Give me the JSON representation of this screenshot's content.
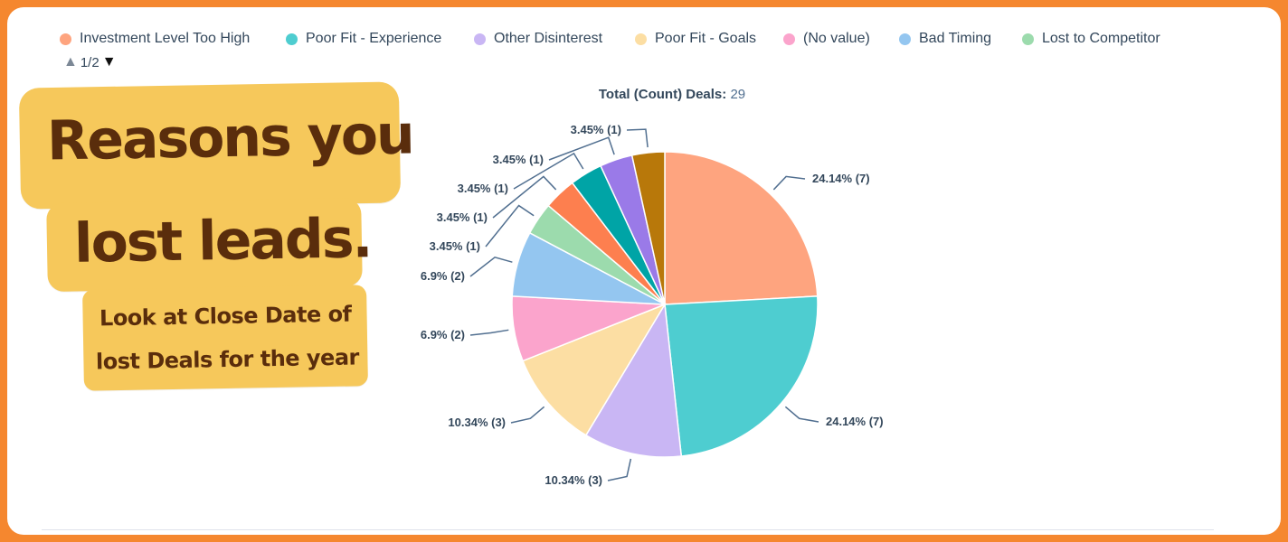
{
  "legend": {
    "items": [
      {
        "label": "Investment Level Too High",
        "color": "#fea47f"
      },
      {
        "label": "Poor Fit - Experience",
        "color": "#4ecdd0"
      },
      {
        "label": "Other Disinterest",
        "color": "#c9b6f4"
      },
      {
        "label": "Poor Fit - Goals",
        "color": "#fcdea3"
      },
      {
        "label": "(No value)",
        "color": "#fba4cc"
      },
      {
        "label": "Bad Timing",
        "color": "#94c6f0"
      },
      {
        "label": "Lost to Competitor",
        "color": "#9cdbad"
      }
    ],
    "pager": {
      "up_icon": "▲",
      "text": "1/2",
      "down_icon": "▼"
    }
  },
  "total": {
    "label": "Total (Count) Deals:",
    "value": "29"
  },
  "overlay": {
    "headline_line1": "Reasons you",
    "headline_line2": "lost leads.",
    "sub_line1": "Look at Close Date of",
    "sub_line2": "lost Deals for the year"
  },
  "chart_data": {
    "type": "pie",
    "title": "Total (Count) Deals: 29",
    "total": 29,
    "slices": [
      {
        "name": "Investment Level Too High",
        "value": 7,
        "percent": 24.14,
        "label": "24.14% (7)",
        "color": "#fea47f"
      },
      {
        "name": "Poor Fit - Experience",
        "value": 7,
        "percent": 24.14,
        "label": "24.14% (7)",
        "color": "#4ecdd0"
      },
      {
        "name": "Other Disinterest",
        "value": 3,
        "percent": 10.34,
        "label": "10.34% (3)",
        "color": "#c9b6f4"
      },
      {
        "name": "Poor Fit - Goals",
        "value": 3,
        "percent": 10.34,
        "label": "10.34% (3)",
        "color": "#fcdea3"
      },
      {
        "name": "(No value)",
        "value": 2,
        "percent": 6.9,
        "label": "6.9% (2)",
        "color": "#fba4cc"
      },
      {
        "name": "Bad Timing",
        "value": 2,
        "percent": 6.9,
        "label": "6.9% (2)",
        "color": "#94c6f0"
      },
      {
        "name": "Lost to Competitor",
        "value": 1,
        "percent": 3.45,
        "label": "3.45% (1)",
        "color": "#9cdbad"
      },
      {
        "name": "",
        "value": 1,
        "percent": 3.45,
        "label": "3.45% (1)",
        "color": "#fd7f4f"
      },
      {
        "name": "",
        "value": 1,
        "percent": 3.45,
        "label": "3.45% (1)",
        "color": "#00a4a6"
      },
      {
        "name": "",
        "value": 1,
        "percent": 3.45,
        "label": "3.45% (1)",
        "color": "#9a7ae8"
      },
      {
        "name": "",
        "value": 1,
        "percent": 3.45,
        "label": "3.45% (1)",
        "color": "#b8780a"
      }
    ]
  }
}
